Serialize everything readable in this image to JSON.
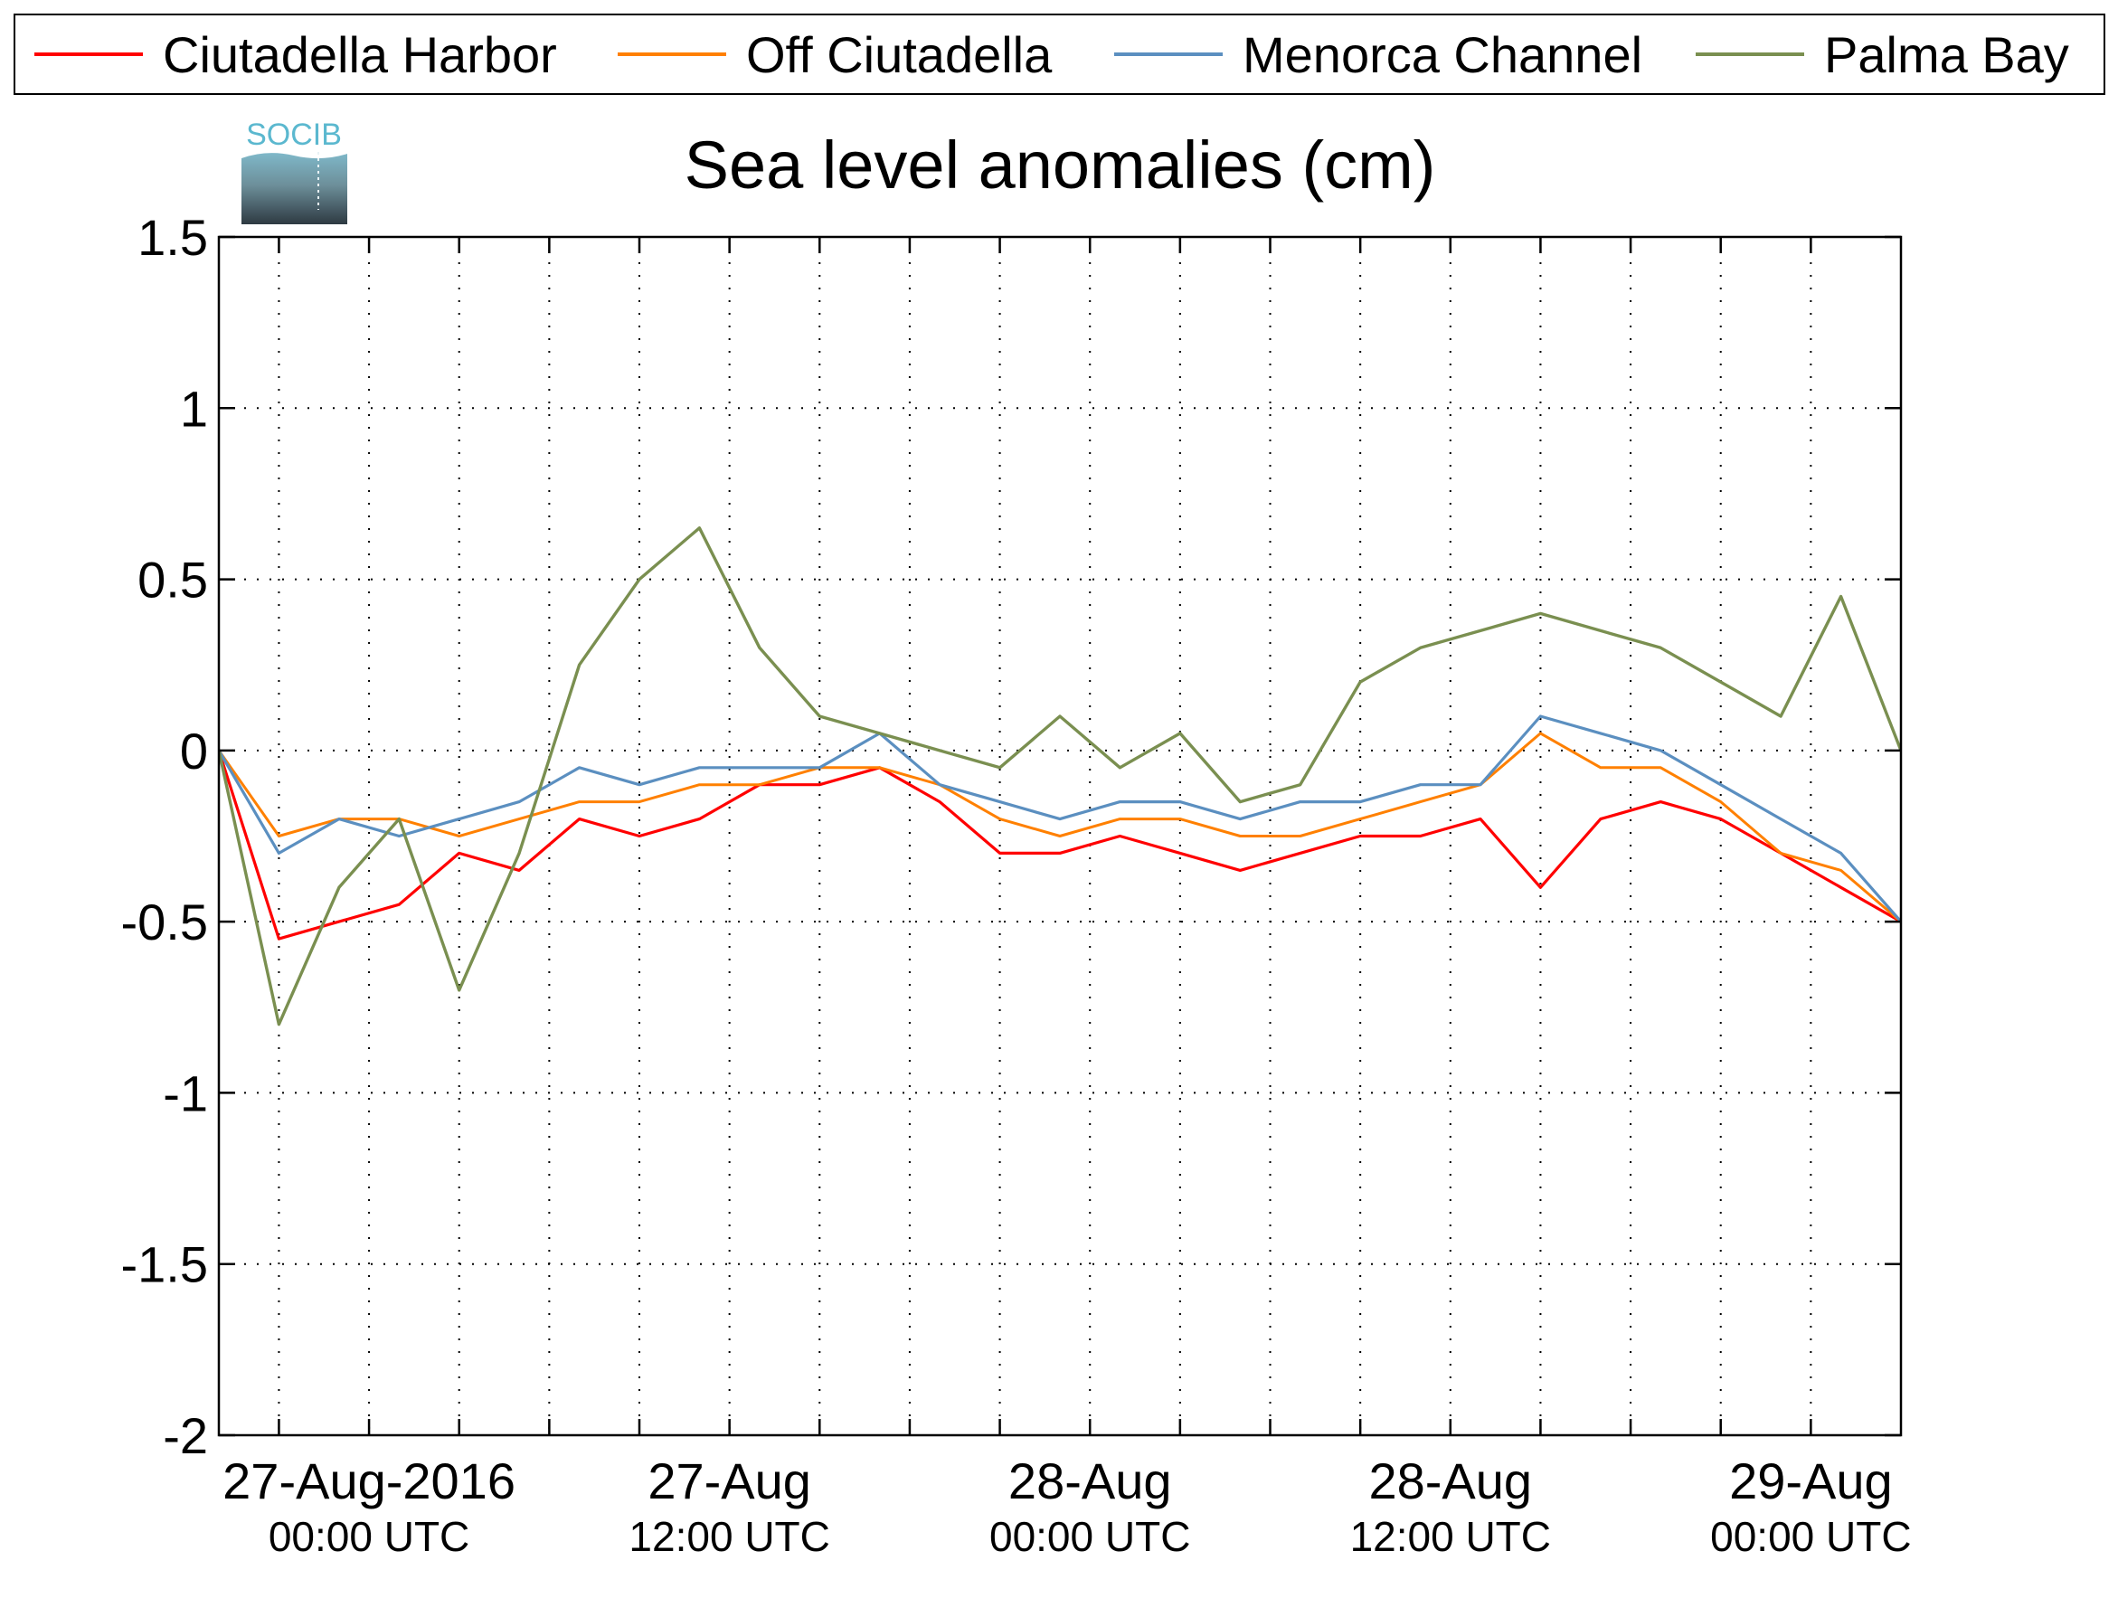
{
  "chart_data": {
    "type": "line",
    "title": "Sea level anomalies (cm)",
    "xlabel": "",
    "ylabel": "",
    "ylim": [
      -2,
      1.5
    ],
    "yticks": [
      {
        "value": 1.5,
        "label": "1.5"
      },
      {
        "value": 1,
        "label": "1"
      },
      {
        "value": 0.5,
        "label": "0.5"
      },
      {
        "value": 0,
        "label": "0"
      },
      {
        "value": -0.5,
        "label": "-0.5"
      },
      {
        "value": -1,
        "label": "-1"
      },
      {
        "value": -1.5,
        "label": "-1.5"
      },
      {
        "value": -2,
        "label": "-2"
      }
    ],
    "xlim": [
      "2016-08-26 19:00",
      "2016-08-29 03:00"
    ],
    "xticks": [
      {
        "value": "2016-08-27 00:00",
        "label": "27-Aug-2016",
        "sublabel": "00:00 UTC"
      },
      {
        "value": "2016-08-27 12:00",
        "label": "27-Aug",
        "sublabel": "12:00 UTC"
      },
      {
        "value": "2016-08-28 00:00",
        "label": "28-Aug",
        "sublabel": "00:00 UTC"
      },
      {
        "value": "2016-08-28 12:00",
        "label": "28-Aug",
        "sublabel": "12:00 UTC"
      },
      {
        "value": "2016-08-29 00:00",
        "label": "29-Aug",
        "sublabel": "00:00 UTC"
      }
    ],
    "minor_xticks": [
      "2016-08-26 21:00",
      "2016-08-27 03:00",
      "2016-08-27 06:00",
      "2016-08-27 09:00",
      "2016-08-27 15:00",
      "2016-08-27 18:00",
      "2016-08-27 21:00",
      "2016-08-28 03:00",
      "2016-08-28 06:00",
      "2016-08-28 09:00",
      "2016-08-28 15:00",
      "2016-08-28 18:00",
      "2016-08-28 21:00"
    ],
    "grid": true,
    "legend_position": "top",
    "x": [
      "2016-08-26 19:00",
      "2016-08-26 21:00",
      "2016-08-26 23:00",
      "2016-08-27 01:00",
      "2016-08-27 03:00",
      "2016-08-27 05:00",
      "2016-08-27 07:00",
      "2016-08-27 09:00",
      "2016-08-27 11:00",
      "2016-08-27 13:00",
      "2016-08-27 15:00",
      "2016-08-27 17:00",
      "2016-08-27 19:00",
      "2016-08-27 21:00",
      "2016-08-27 23:00",
      "2016-08-28 01:00",
      "2016-08-28 03:00",
      "2016-08-28 05:00",
      "2016-08-28 07:00",
      "2016-08-28 09:00",
      "2016-08-28 11:00",
      "2016-08-28 13:00",
      "2016-08-28 15:00",
      "2016-08-28 17:00",
      "2016-08-28 19:00",
      "2016-08-28 21:00",
      "2016-08-28 23:00",
      "2016-08-29 01:00",
      "2016-08-29 03:00"
    ],
    "series": [
      {
        "name": "Ciutadella Harbor",
        "color": "#ff0000",
        "values": [
          0.0,
          -0.55,
          -0.5,
          -0.45,
          -0.3,
          -0.35,
          -0.2,
          -0.25,
          -0.2,
          -0.1,
          -0.1,
          -0.05,
          -0.15,
          -0.3,
          -0.3,
          -0.25,
          -0.3,
          -0.35,
          -0.3,
          -0.25,
          -0.25,
          -0.2,
          -0.4,
          -0.2,
          -0.15,
          -0.2,
          -0.3,
          -0.4,
          -0.5
        ]
      },
      {
        "name": "Off Ciutadella",
        "color": "#ff8000",
        "values": [
          0.0,
          -0.25,
          -0.2,
          -0.2,
          -0.25,
          -0.2,
          -0.15,
          -0.15,
          -0.1,
          -0.1,
          -0.05,
          -0.05,
          -0.1,
          -0.2,
          -0.25,
          -0.2,
          -0.2,
          -0.25,
          -0.25,
          -0.2,
          -0.15,
          -0.1,
          0.05,
          -0.05,
          -0.05,
          -0.15,
          -0.3,
          -0.35,
          -0.5
        ]
      },
      {
        "name": "Menorca Channel",
        "color": "#5b8fc0",
        "values": [
          0.0,
          -0.3,
          -0.2,
          -0.25,
          -0.2,
          -0.15,
          -0.05,
          -0.1,
          -0.05,
          -0.05,
          -0.05,
          0.05,
          -0.1,
          -0.15,
          -0.2,
          -0.15,
          -0.15,
          -0.2,
          -0.15,
          -0.15,
          -0.1,
          -0.1,
          0.1,
          0.05,
          0.0,
          -0.1,
          -0.2,
          -0.3,
          -0.5
        ]
      },
      {
        "name": "Palma Bay",
        "color": "#7a8f50",
        "values": [
          0.0,
          -0.8,
          -0.4,
          -0.2,
          -0.7,
          -0.3,
          0.25,
          0.5,
          0.65,
          0.3,
          0.1,
          0.05,
          0.0,
          -0.05,
          0.1,
          -0.05,
          0.05,
          -0.15,
          -0.1,
          0.2,
          0.3,
          0.35,
          0.4,
          0.35,
          0.3,
          0.2,
          0.1,
          0.45,
          0.0
        ]
      }
    ]
  },
  "logo": {
    "text": "SOCIB"
  }
}
